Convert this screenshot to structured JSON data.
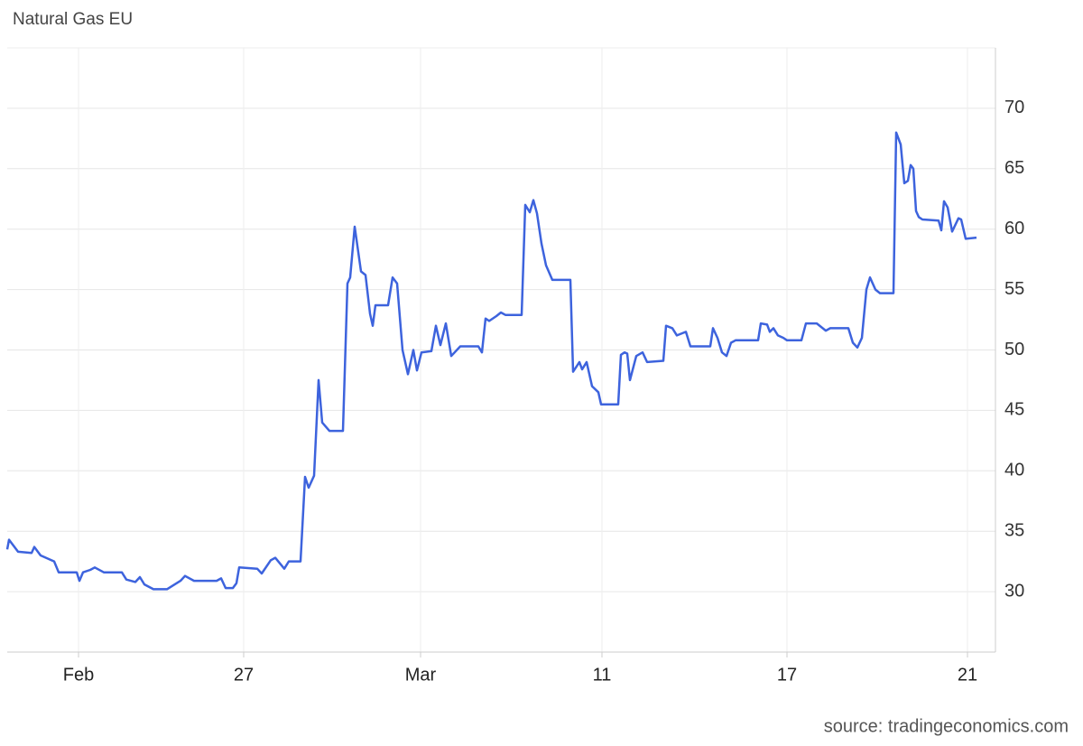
{
  "chart_data": {
    "type": "line",
    "title": "Natural Gas EU",
    "source": "source: tradingeconomics.com",
    "x": [
      0,
      2,
      12,
      27,
      30,
      37,
      52,
      57,
      77,
      80,
      84,
      92,
      97,
      107,
      127,
      132,
      142,
      147,
      152,
      162,
      177,
      192,
      197,
      207,
      232,
      237,
      242,
      250,
      254,
      257,
      277,
      282,
      292,
      297,
      307,
      312,
      325,
      330,
      334,
      340,
      345,
      349,
      357,
      372,
      377,
      380,
      385,
      392,
      397,
      402,
      405,
      408,
      422,
      427,
      432,
      438,
      444,
      450,
      454,
      459,
      470,
      475,
      480,
      486,
      492,
      502,
      522,
      526,
      530,
      534,
      542,
      547,
      552,
      570,
      574,
      579,
      583,
      587,
      592,
      597,
      604,
      624,
      627,
      634,
      637,
      642,
      648,
      655,
      658,
      677,
      680,
      684,
      687,
      690,
      697,
      704,
      709,
      727,
      730,
      737,
      742,
      752,
      757,
      779,
      782,
      787,
      792,
      797,
      802,
      807,
      832,
      835,
      842,
      845,
      849,
      854,
      860,
      864,
      880,
      885,
      897,
      907,
      912,
      932,
      937,
      942,
      947,
      952,
      956,
      962,
      967,
      982,
      985,
      990,
      994,
      998,
      1001,
      1004,
      1007,
      1010,
      1014,
      1032,
      1035,
      1038,
      1042,
      1047,
      1054,
      1057,
      1062,
      1074
    ],
    "series": [
      {
        "name": "Natural Gas EU",
        "color": "#3d63dd",
        "values": [
          33.5,
          34.3,
          33.3,
          33.2,
          33.7,
          33,
          32.5,
          31.6,
          31.6,
          30.9,
          31.6,
          31.8,
          32,
          31.6,
          31.6,
          31,
          30.8,
          31.2,
          30.6,
          30.2,
          30.2,
          30.9,
          31.3,
          30.9,
          30.9,
          31.1,
          30.3,
          30.3,
          30.7,
          32,
          31.9,
          31.5,
          32.6,
          32.8,
          31.9,
          32.5,
          32.5,
          39.5,
          38.6,
          39.6,
          47.5,
          44,
          43.3,
          43.3,
          55.5,
          56,
          60.2,
          56.5,
          56.2,
          53,
          52,
          53.7,
          53.7,
          56,
          55.5,
          50,
          48,
          50,
          48.3,
          49.8,
          49.9,
          52,
          50.4,
          52.2,
          49.5,
          50.3,
          50.3,
          49.8,
          52.6,
          52.4,
          52.8,
          53.1,
          52.9,
          52.9,
          62,
          61.4,
          62.4,
          61.3,
          58.8,
          57,
          55.8,
          55.8,
          48.2,
          49,
          48.4,
          49,
          47,
          46.5,
          45.5,
          45.5,
          49.6,
          49.8,
          49.7,
          47.5,
          49.5,
          49.8,
          49,
          49.1,
          52,
          51.8,
          51.2,
          51.5,
          50.3,
          50.3,
          51.8,
          51,
          49.8,
          49.5,
          50.6,
          50.8,
          50.8,
          52.2,
          52.1,
          51.5,
          51.8,
          51.2,
          51,
          50.8,
          50.8,
          52.2,
          52.2,
          51.6,
          51.8,
          51.8,
          50.6,
          50.2,
          51,
          55,
          56,
          55,
          54.7,
          54.7,
          68,
          67,
          63.8,
          64,
          65.3,
          65,
          61.5,
          61,
          60.8,
          60.7,
          59.9,
          62.3,
          61.8,
          59.8,
          60.9,
          60.8,
          59.2,
          59.3
        ]
      }
    ],
    "xlim": [
      0,
      1095
    ],
    "xticks": [
      {
        "value": 79,
        "label": "Feb"
      },
      {
        "value": 262,
        "label": "27"
      },
      {
        "value": 458,
        "label": "Mar"
      },
      {
        "value": 659,
        "label": "11"
      },
      {
        "value": 864,
        "label": "17"
      },
      {
        "value": 1064,
        "label": "21"
      }
    ],
    "ylim": [
      25,
      75
    ],
    "yticks": [
      30,
      35,
      40,
      45,
      50,
      55,
      60,
      65,
      70
    ],
    "grid": true
  }
}
